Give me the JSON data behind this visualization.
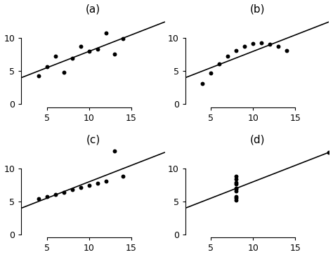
{
  "title_a": "(a)",
  "title_b": "(b)",
  "title_c": "(c)",
  "title_d": "(d)",
  "a_x": [
    10,
    8,
    13,
    9,
    11,
    14,
    6,
    4,
    12,
    7,
    5
  ],
  "a_y": [
    8.04,
    6.95,
    7.58,
    8.81,
    8.33,
    9.96,
    7.24,
    4.26,
    10.84,
    4.82,
    5.68
  ],
  "b_x": [
    10,
    8,
    13,
    9,
    11,
    14,
    6,
    4,
    12,
    7,
    5
  ],
  "b_y": [
    9.14,
    8.14,
    8.74,
    8.77,
    9.26,
    8.1,
    6.13,
    3.1,
    9.13,
    7.26,
    4.74
  ],
  "c_x": [
    10,
    8,
    13,
    9,
    11,
    14,
    6,
    4,
    12,
    7,
    5
  ],
  "c_y": [
    7.46,
    6.77,
    12.74,
    7.11,
    7.81,
    8.84,
    6.08,
    5.39,
    8.15,
    6.42,
    5.73
  ],
  "d_x": [
    8,
    8,
    8,
    8,
    8,
    8,
    8,
    19,
    8,
    8,
    8
  ],
  "d_y": [
    6.58,
    5.76,
    7.71,
    8.84,
    8.47,
    7.04,
    5.25,
    12.5,
    5.56,
    7.91,
    6.89
  ],
  "line_y_intercept": 3.0,
  "line_slope": 0.5,
  "dot_color": "#000000",
  "line_color": "#000000",
  "marker_size": 18,
  "line_width": 1.2,
  "xlim_abc": [
    2,
    19
  ],
  "xlim_d": [
    2,
    19
  ],
  "ylim_abc": [
    -0.5,
    13.5
  ],
  "ylim_d": [
    -0.5,
    13.5
  ],
  "xticks_abc": [
    5,
    10,
    15
  ],
  "xticks_d": [
    5,
    10,
    15
  ],
  "yticks": [
    0,
    5,
    10
  ],
  "background": "#ffffff",
  "title_fontsize": 11,
  "tick_fontsize": 9
}
